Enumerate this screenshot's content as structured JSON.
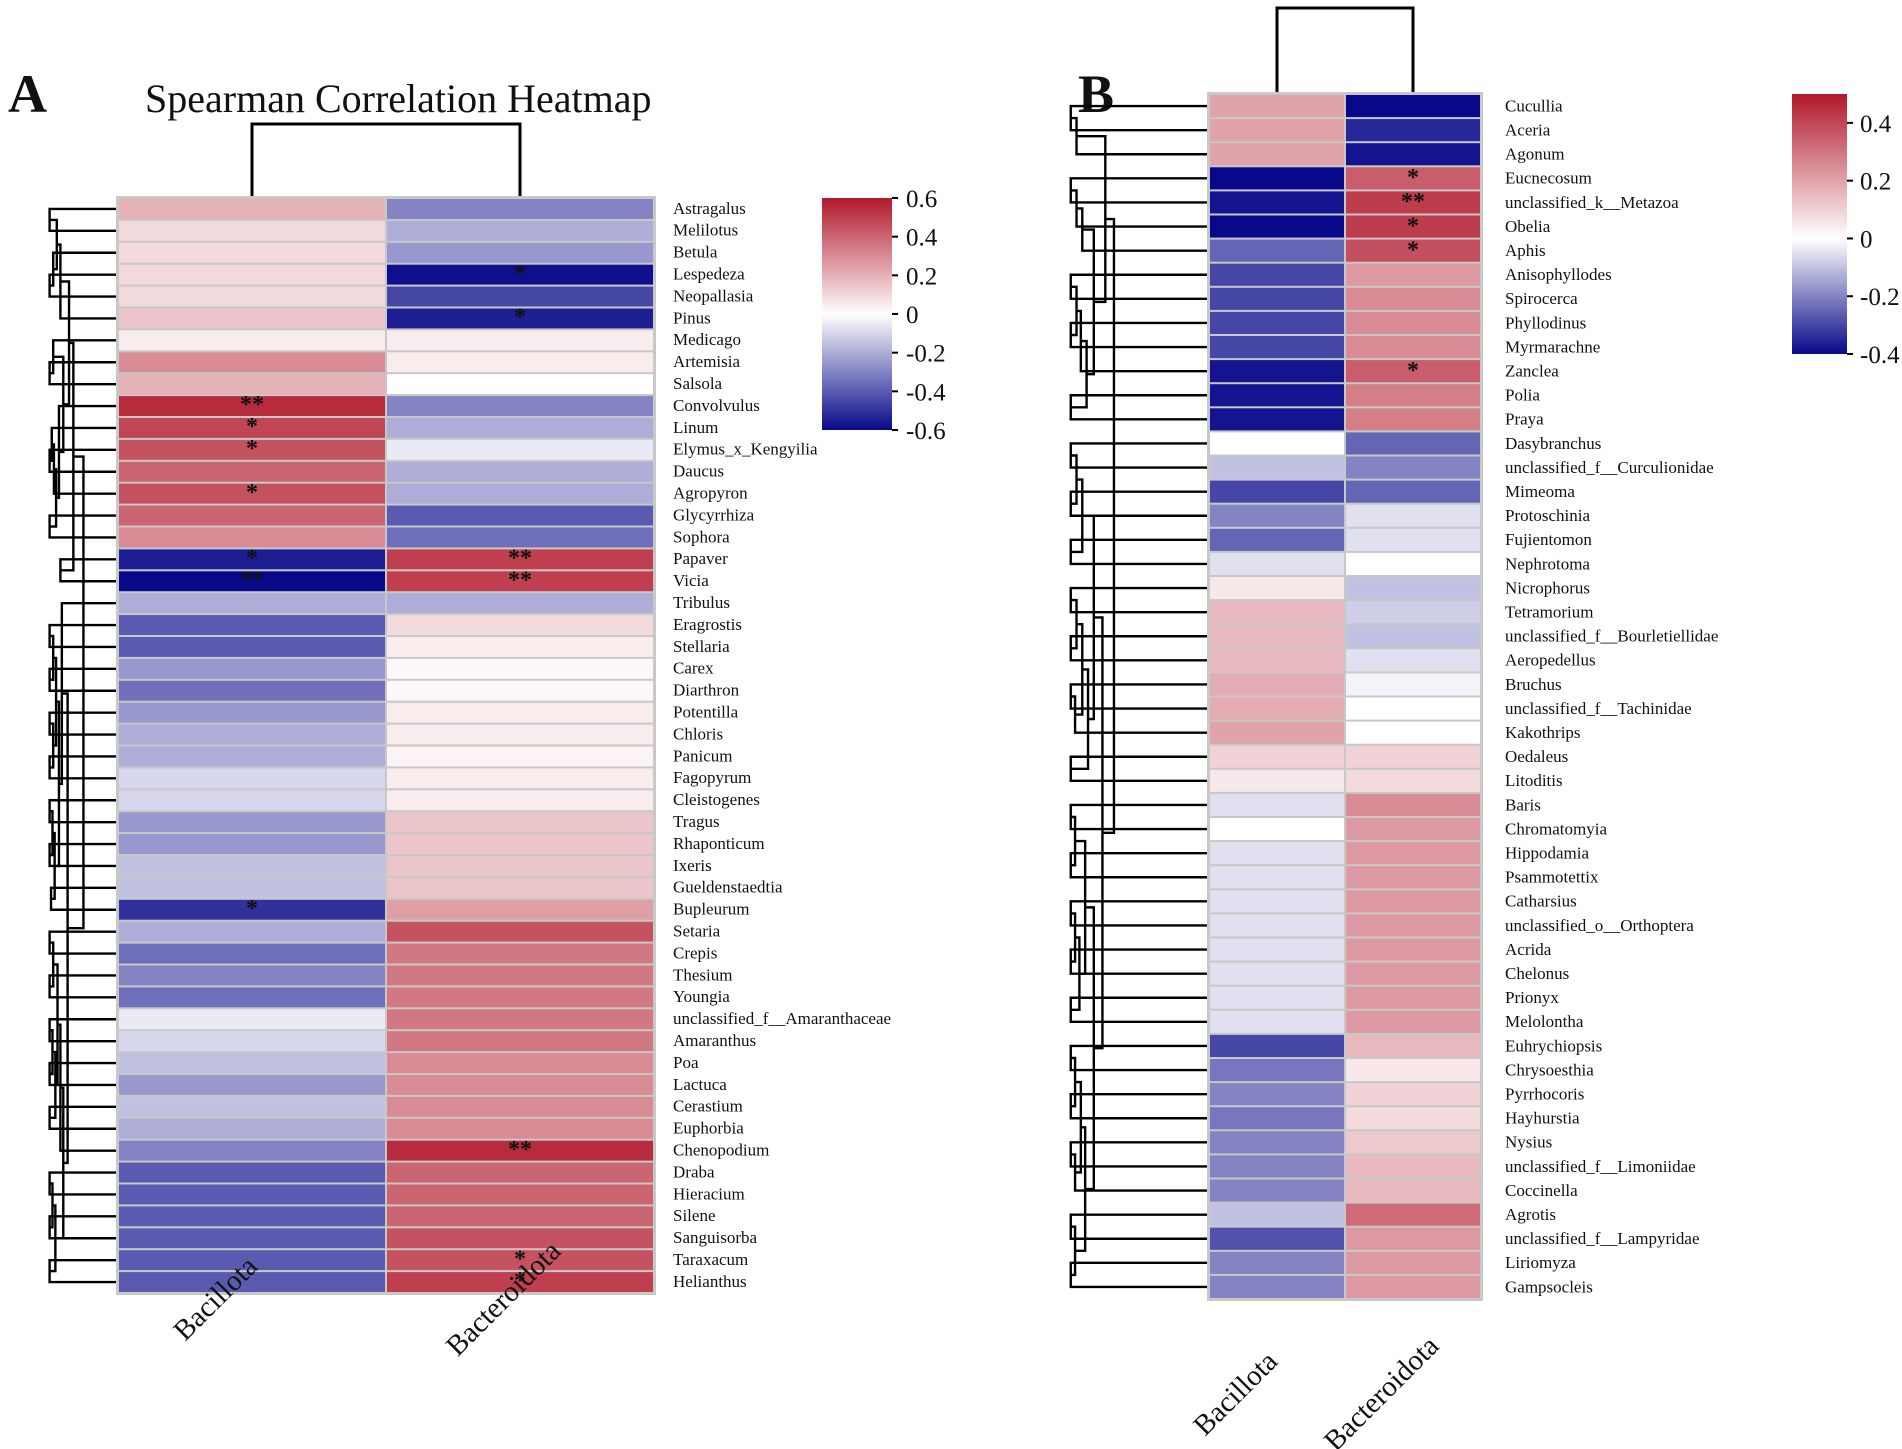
{
  "chart_data": [
    {
      "panel": "A",
      "type": "heatmap",
      "title": "Spearman Correlation Heatmap",
      "columns": [
        "Bacillota",
        "Bacteroidota"
      ],
      "rows": [
        "Astragalus",
        "Melilotus",
        "Betula",
        "Lespedeza",
        "Neopallasia",
        "Pinus",
        "Medicago",
        "Artemisia",
        "Salsola",
        "Convolvulus",
        "Linum",
        "Elymus_x_Kengyilia",
        "Daucus",
        "Agropyron",
        "Glycyrrhiza",
        "Sophora",
        "Papaver",
        "Vicia",
        "Tribulus",
        "Eragrostis",
        "Stellaria",
        "Carex",
        "Diarthron",
        "Potentilla",
        "Chloris",
        "Panicum",
        "Fagopyrum",
        "Cleistogenes",
        "Tragus",
        "Rhaponticum",
        "Ixeris",
        "Gueldenstaedtia",
        "Bupleurum",
        "Setaria",
        "Crepis",
        "Thesium",
        "Youngia",
        "unclassified_f__Amaranthaceae",
        "Amaranthus",
        "Poa",
        "Lactuca",
        "Cerastium",
        "Euphorbia",
        "Chenopodium",
        "Draba",
        "Hieracium",
        "Silene",
        "Sanguisorba",
        "Taraxacum",
        "Helianthus"
      ],
      "values": [
        [
          0.2,
          -0.3
        ],
        [
          0.1,
          -0.2
        ],
        [
          0.1,
          -0.25
        ],
        [
          0.1,
          -0.58
        ],
        [
          0.1,
          -0.45
        ],
        [
          0.15,
          -0.55
        ],
        [
          0.05,
          0.05
        ],
        [
          0.3,
          0.05
        ],
        [
          0.2,
          0.0
        ],
        [
          0.55,
          -0.3
        ],
        [
          0.48,
          -0.2
        ],
        [
          0.45,
          -0.05
        ],
        [
          0.4,
          -0.2
        ],
        [
          0.45,
          -0.2
        ],
        [
          0.4,
          -0.4
        ],
        [
          0.3,
          -0.35
        ],
        [
          -0.55,
          0.5
        ],
        [
          -0.6,
          0.5
        ],
        [
          -0.2,
          -0.2
        ],
        [
          -0.4,
          0.1
        ],
        [
          -0.4,
          0.05
        ],
        [
          -0.25,
          0.02
        ],
        [
          -0.35,
          0.02
        ],
        [
          -0.25,
          0.05
        ],
        [
          -0.2,
          0.05
        ],
        [
          -0.2,
          0.03
        ],
        [
          -0.1,
          0.05
        ],
        [
          -0.1,
          0.05
        ],
        [
          -0.25,
          0.15
        ],
        [
          -0.25,
          0.15
        ],
        [
          -0.15,
          0.15
        ],
        [
          -0.15,
          0.15
        ],
        [
          -0.5,
          0.25
        ],
        [
          -0.2,
          0.45
        ],
        [
          -0.35,
          0.35
        ],
        [
          -0.3,
          0.35
        ],
        [
          -0.35,
          0.35
        ],
        [
          -0.05,
          0.35
        ],
        [
          -0.1,
          0.35
        ],
        [
          -0.15,
          0.3
        ],
        [
          -0.25,
          0.3
        ],
        [
          -0.15,
          0.3
        ],
        [
          -0.2,
          0.3
        ],
        [
          -0.3,
          0.55
        ],
        [
          -0.4,
          0.4
        ],
        [
          -0.4,
          0.4
        ],
        [
          -0.4,
          0.4
        ],
        [
          -0.4,
          0.45
        ],
        [
          -0.4,
          0.45
        ],
        [
          -0.4,
          0.5
        ]
      ],
      "significance": [
        [
          "",
          ""
        ],
        [
          "",
          ""
        ],
        [
          "",
          ""
        ],
        [
          "",
          "*"
        ],
        [
          "",
          ""
        ],
        [
          "",
          "*"
        ],
        [
          "",
          ""
        ],
        [
          "",
          ""
        ],
        [
          "",
          ""
        ],
        [
          "**",
          ""
        ],
        [
          "*",
          ""
        ],
        [
          "*",
          ""
        ],
        [
          "",
          ""
        ],
        [
          "*",
          ""
        ],
        [
          "",
          ""
        ],
        [
          "",
          ""
        ],
        [
          "*",
          "**"
        ],
        [
          "**",
          "**"
        ],
        [
          "",
          ""
        ],
        [
          "",
          ""
        ],
        [
          "",
          ""
        ],
        [
          "",
          ""
        ],
        [
          "",
          ""
        ],
        [
          "",
          ""
        ],
        [
          "",
          ""
        ],
        [
          "",
          ""
        ],
        [
          "",
          ""
        ],
        [
          "",
          ""
        ],
        [
          "",
          ""
        ],
        [
          "",
          ""
        ],
        [
          "",
          ""
        ],
        [
          "",
          ""
        ],
        [
          "*",
          ""
        ],
        [
          "",
          ""
        ],
        [
          "",
          ""
        ],
        [
          "",
          ""
        ],
        [
          "",
          ""
        ],
        [
          "",
          ""
        ],
        [
          "",
          ""
        ],
        [
          "",
          ""
        ],
        [
          "",
          ""
        ],
        [
          "",
          ""
        ],
        [
          "",
          ""
        ],
        [
          "",
          "**"
        ],
        [
          "",
          ""
        ],
        [
          "",
          ""
        ],
        [
          "",
          ""
        ],
        [
          "",
          ""
        ],
        [
          "",
          "*"
        ],
        [
          "",
          "*"
        ]
      ],
      "colorbar": {
        "min": -0.6,
        "max": 0.6,
        "ticks": [
          "0.6",
          "0.4",
          "0.2",
          "0",
          "-0.2",
          "-0.4",
          "-0.6"
        ]
      }
    },
    {
      "panel": "B",
      "type": "heatmap",
      "title": "",
      "columns": [
        "Bacillota",
        "Bacteroidota"
      ],
      "rows": [
        "Cucullia",
        "Aceria",
        "Agonum",
        "Eucnecosum",
        "unclassified_k__Metazoa",
        "Obelia",
        "Aphis",
        "Anisophyllodes",
        "Spirocerca",
        "Phyllodinus",
        "Myrmarachne",
        "Zanclea",
        "Polia",
        "Praya",
        "Dasybranchus",
        "unclassified_f__Curculionidae",
        "Mimeoma",
        "Protoschinia",
        "Fujientomon",
        "Nephrotoma",
        "Nicrophorus",
        "Tetramorium",
        "unclassified_f__Bourletiellidae",
        "Aeropedellus",
        "Bruchus",
        "unclassified_f__Tachinidae",
        "Kakothrips",
        "Oedaleus",
        "Litoditis",
        "Baris",
        "Chromatomyia",
        "Hippodamia",
        "Psammotettix",
        "Catharsius",
        "unclassified_o__Orthoptera",
        "Acrida",
        "Chelonus",
        "Prionyx",
        "Melolontha",
        "Euhrychiopsis",
        "Chrysoesthia",
        "Pyrrhocoris",
        "Hayhurstia",
        "Nysius",
        "unclassified_f__Limoniidae",
        "Coccinella",
        "Agrotis",
        "unclassified_f__Lampyridae",
        "Liriomyza",
        "Gampsocleis"
      ],
      "values": [
        [
          0.2,
          -0.4
        ],
        [
          0.2,
          -0.35
        ],
        [
          0.2,
          -0.38
        ],
        [
          -0.4,
          0.35
        ],
        [
          -0.38,
          0.42
        ],
        [
          -0.4,
          0.42
        ],
        [
          -0.25,
          0.38
        ],
        [
          -0.3,
          0.22
        ],
        [
          -0.3,
          0.25
        ],
        [
          -0.3,
          0.25
        ],
        [
          -0.3,
          0.25
        ],
        [
          -0.38,
          0.35
        ],
        [
          -0.38,
          0.28
        ],
        [
          -0.38,
          0.28
        ],
        [
          0.0,
          -0.25
        ],
        [
          -0.1,
          -0.2
        ],
        [
          -0.3,
          -0.25
        ],
        [
          -0.2,
          -0.05
        ],
        [
          -0.25,
          -0.05
        ],
        [
          -0.05,
          0.0
        ],
        [
          0.05,
          -0.1
        ],
        [
          0.15,
          -0.08
        ],
        [
          0.15,
          -0.1
        ],
        [
          0.15,
          -0.05
        ],
        [
          0.18,
          -0.02
        ],
        [
          0.18,
          0.0
        ],
        [
          0.2,
          0.0
        ],
        [
          0.1,
          0.1
        ],
        [
          0.05,
          0.08
        ],
        [
          -0.05,
          0.25
        ],
        [
          0.0,
          0.22
        ],
        [
          -0.05,
          0.22
        ],
        [
          -0.05,
          0.22
        ],
        [
          -0.05,
          0.22
        ],
        [
          -0.05,
          0.22
        ],
        [
          -0.05,
          0.22
        ],
        [
          -0.05,
          0.22
        ],
        [
          -0.05,
          0.22
        ],
        [
          -0.05,
          0.22
        ],
        [
          -0.3,
          0.15
        ],
        [
          -0.22,
          0.05
        ],
        [
          -0.2,
          0.1
        ],
        [
          -0.22,
          0.08
        ],
        [
          -0.2,
          0.12
        ],
        [
          -0.2,
          0.15
        ],
        [
          -0.2,
          0.15
        ],
        [
          -0.1,
          0.32
        ],
        [
          -0.28,
          0.22
        ],
        [
          -0.2,
          0.22
        ],
        [
          -0.2,
          0.22
        ]
      ],
      "significance": [
        [
          "",
          ""
        ],
        [
          "",
          ""
        ],
        [
          "",
          ""
        ],
        [
          "",
          "*"
        ],
        [
          "",
          "**"
        ],
        [
          "",
          "*"
        ],
        [
          "",
          "*"
        ],
        [
          "",
          ""
        ],
        [
          "",
          ""
        ],
        [
          "",
          ""
        ],
        [
          "",
          ""
        ],
        [
          "",
          "*"
        ],
        [
          "",
          ""
        ],
        [
          "",
          ""
        ],
        [
          "",
          ""
        ],
        [
          "",
          ""
        ],
        [
          "",
          ""
        ],
        [
          "",
          ""
        ],
        [
          "",
          ""
        ],
        [
          "",
          ""
        ],
        [
          "",
          ""
        ],
        [
          "",
          ""
        ],
        [
          "",
          ""
        ],
        [
          "",
          ""
        ],
        [
          "",
          ""
        ],
        [
          "",
          ""
        ],
        [
          "",
          ""
        ],
        [
          "",
          ""
        ],
        [
          "",
          ""
        ],
        [
          "",
          ""
        ],
        [
          "",
          ""
        ],
        [
          "",
          ""
        ],
        [
          "",
          ""
        ],
        [
          "",
          ""
        ],
        [
          "",
          ""
        ],
        [
          "",
          ""
        ],
        [
          "",
          ""
        ],
        [
          "",
          ""
        ],
        [
          "",
          ""
        ],
        [
          "",
          ""
        ],
        [
          "",
          ""
        ],
        [
          "",
          ""
        ],
        [
          "",
          ""
        ],
        [
          "",
          ""
        ],
        [
          "",
          ""
        ],
        [
          "",
          ""
        ],
        [
          "",
          ""
        ],
        [
          "",
          ""
        ],
        [
          "",
          ""
        ],
        [
          "",
          ""
        ]
      ],
      "colorbar": {
        "min": -0.4,
        "max": 0.5,
        "ticks": [
          "0.4",
          "0.2",
          "0",
          "-0.2",
          "-0.4"
        ]
      }
    }
  ],
  "colors": {
    "high": "#b2182b",
    "mid": "#ffffff",
    "low": "#08088a",
    "cell_border": "#c8c8c8"
  }
}
